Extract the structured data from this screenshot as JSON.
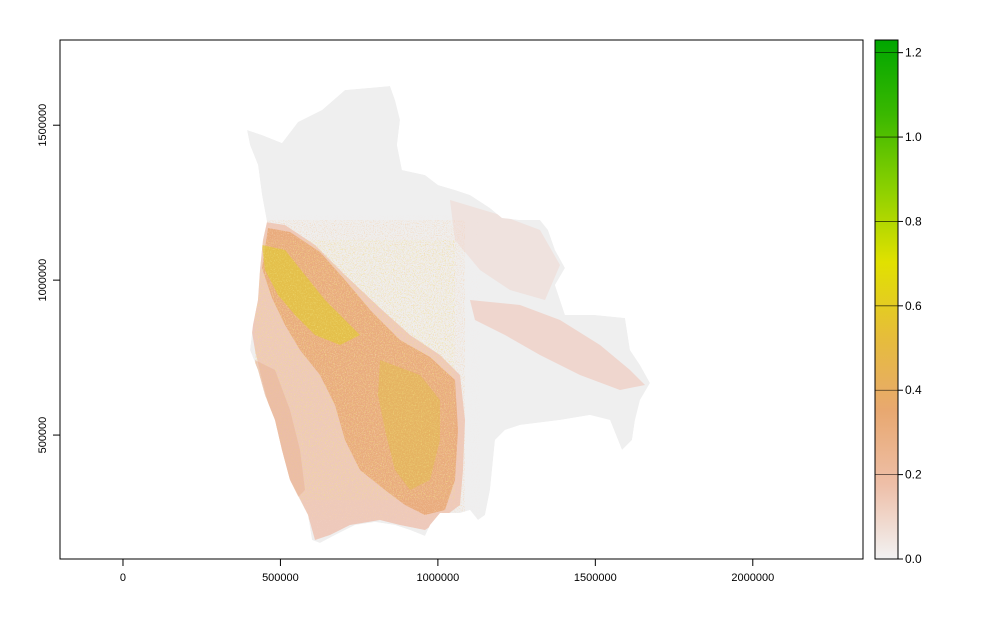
{
  "map": {
    "x_axis": {
      "range": [
        -200000,
        2350000
      ],
      "ticks": [
        0,
        500000,
        1000000,
        1500000,
        2000000
      ],
      "tick_labels": [
        "0",
        "500000",
        "1000000",
        "1500000",
        "2000000"
      ]
    },
    "y_axis": {
      "range": [
        100000,
        1775000
      ],
      "ticks": [
        500000,
        1000000,
        1500000
      ],
      "tick_labels": [
        "500000",
        "1000000",
        "1500000"
      ]
    },
    "raster": {
      "region_fill": "#efefef",
      "low_value_color": "#eec1b3",
      "mid_value_color": "#e8a36c",
      "high_value_color": "#e2c63a"
    }
  },
  "legend": {
    "min": 0.0,
    "max": 1.23,
    "ticks": [
      0.0,
      0.2,
      0.4,
      0.6,
      0.8,
      1.0,
      1.2
    ],
    "tick_labels": [
      "0.0",
      "0.2",
      "0.4",
      "0.6",
      "0.8",
      "1.0",
      "1.2"
    ],
    "colors": [
      "#f2f2f2",
      "#eebfa8",
      "#e8a870",
      "#e6bd3a",
      "#e1e100",
      "#8bd000",
      "#3ab800",
      "#00a600"
    ]
  }
}
